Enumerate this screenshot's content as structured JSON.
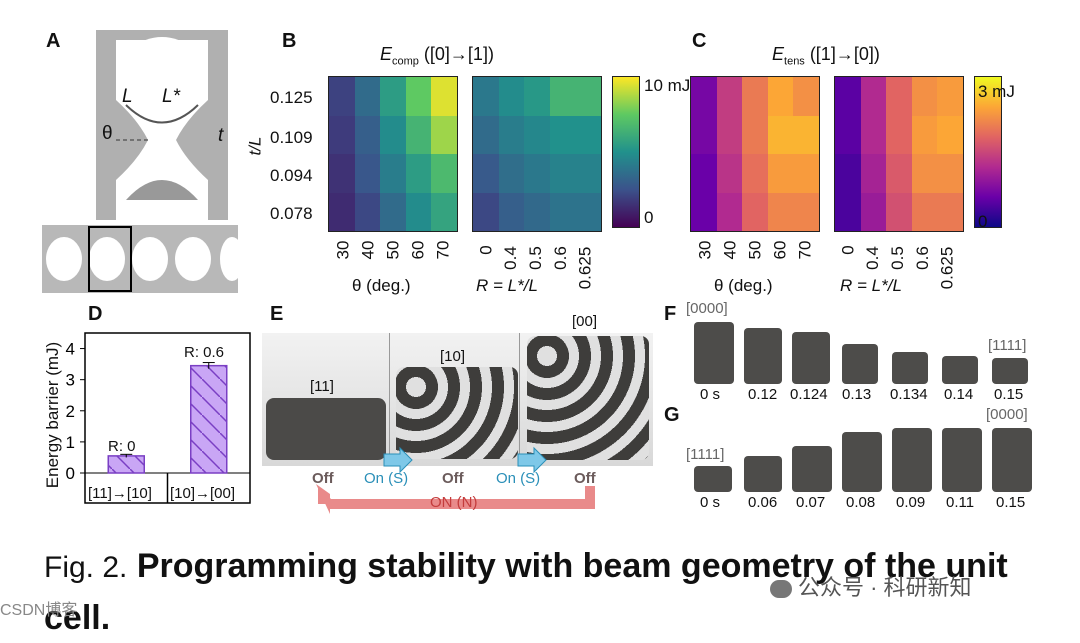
{
  "panels": {
    "A": {
      "label": "A",
      "L": "L",
      "Lstar": "L*",
      "theta": "θ",
      "t": "t"
    },
    "B": {
      "label": "B",
      "title_main": "E",
      "title_sub": "comp",
      "title_rest": " ([0]→[1])",
      "ylabel": "t/L",
      "yticks": [
        "0.125",
        "0.109",
        "0.094",
        "0.078"
      ],
      "xticks_theta": [
        "30",
        "40",
        "50",
        "60",
        "70"
      ],
      "xticks_R": [
        "0",
        "0.4",
        "0.5",
        "0.6",
        "0.625"
      ],
      "xlabel_theta": "θ (deg.)",
      "xlabel_R": "R = L*/L",
      "cbar_max": "10 mJ",
      "cbar_min": "0"
    },
    "C": {
      "label": "C",
      "title_main": "E",
      "title_sub": "tens",
      "title_rest": " ([1]→[0])",
      "xticks_theta": [
        "30",
        "40",
        "50",
        "60",
        "70"
      ],
      "xticks_R": [
        "0",
        "0.4",
        "0.5",
        "0.6",
        "0.625"
      ],
      "xlabel_theta": "θ (deg.)",
      "xlabel_R": "R = L*/L",
      "cbar_max": "3 mJ",
      "cbar_min": "0"
    },
    "D": {
      "label": "D",
      "ylabel": "Energy barrier (mJ)",
      "yticks": [
        "4",
        "3",
        "2",
        "1",
        "0"
      ],
      "bar1_annot": "R: 0",
      "bar2_annot": "R: 0.6",
      "cat1": "[11]→[10]",
      "cat2": "[10]→[00]"
    },
    "E": {
      "label": "E",
      "state1": "[11]",
      "state2": "[10]",
      "state3": "[00]",
      "off1": "Off",
      "on1": "On (S)",
      "off2": "Off",
      "on2": "On (S)",
      "off3": "Off",
      "onN": "ON (N)"
    },
    "F": {
      "label": "F",
      "start_code": "[0000]",
      "end_code": "[1111]",
      "times": [
        "0 s",
        "0.12",
        "0.124",
        "0.13",
        "0.134",
        "0.14",
        "0.15"
      ]
    },
    "G": {
      "label": "G",
      "start_code": "[1111]",
      "end_code": "[0000]",
      "times": [
        "0 s",
        "0.06",
        "0.07",
        "0.08",
        "0.09",
        "0.11",
        "0.15"
      ]
    }
  },
  "chart_data": [
    {
      "type": "heatmap",
      "panel": "B-left",
      "rows": [
        "0.125",
        "0.109",
        "0.094",
        "0.078"
      ],
      "cols": [
        "30",
        "40",
        "50",
        "60",
        "70"
      ],
      "values": [
        [
          2.0,
          3.5,
          5.5,
          7.5,
          9.5
        ],
        [
          1.8,
          3.0,
          4.8,
          6.5,
          8.5
        ],
        [
          1.5,
          2.7,
          4.2,
          5.5,
          6.8
        ],
        [
          1.3,
          2.2,
          3.5,
          4.8,
          5.8
        ]
      ],
      "vmax": 10,
      "cmap": "viridis"
    },
    {
      "type": "heatmap",
      "panel": "B-right",
      "rows": [
        "0.125",
        "0.109",
        "0.094",
        "0.078"
      ],
      "cols": [
        "0",
        "0.4",
        "0.5",
        "0.6",
        "0.625"
      ],
      "values": [
        [
          4.0,
          4.8,
          5.3,
          6.5,
          6.5
        ],
        [
          3.5,
          4.2,
          4.6,
          5.0,
          5.0
        ],
        [
          2.8,
          3.6,
          4.0,
          4.4,
          4.4
        ],
        [
          2.2,
          3.0,
          3.4,
          3.8,
          3.8
        ]
      ],
      "vmax": 10,
      "cmap": "viridis"
    },
    {
      "type": "heatmap",
      "panel": "C-left",
      "rows": [
        "0.125",
        "0.109",
        "0.094",
        "0.078"
      ],
      "cols": [
        "30",
        "40",
        "50",
        "60",
        "70"
      ],
      "values": [
        [
          0.7,
          1.4,
          2.0,
          2.4,
          2.2
        ],
        [
          0.7,
          1.4,
          2.0,
          2.5,
          2.5
        ],
        [
          0.6,
          1.3,
          1.9,
          2.3,
          2.3
        ],
        [
          0.6,
          1.2,
          1.8,
          2.1,
          2.1
        ]
      ],
      "vmax": 3,
      "cmap": "plasma"
    },
    {
      "type": "heatmap",
      "panel": "C-right",
      "rows": [
        "0.125",
        "0.109",
        "0.094",
        "0.078"
      ],
      "cols": [
        "0",
        "0.4",
        "0.5",
        "0.6",
        "0.625"
      ],
      "values": [
        [
          0.5,
          1.2,
          1.8,
          2.2,
          2.3
        ],
        [
          0.5,
          1.2,
          1.8,
          2.3,
          2.4
        ],
        [
          0.4,
          1.1,
          1.7,
          2.2,
          2.2
        ],
        [
          0.4,
          1.0,
          1.6,
          2.0,
          2.0
        ]
      ],
      "vmax": 3,
      "cmap": "plasma"
    },
    {
      "type": "bar",
      "panel": "D",
      "categories": [
        "[11]→[10]",
        "[10]→[00]"
      ],
      "values": [
        0.55,
        3.45
      ],
      "errors": [
        0.05,
        0.1
      ],
      "ylim": [
        0,
        4.5
      ]
    }
  ],
  "caption": {
    "prefix": "Fig. 2.",
    "text": " Programming stability with beam geometry of the unit cell."
  },
  "watermark": {
    "main": "公众号 · 科研新知",
    "left": "CSDN博客"
  }
}
